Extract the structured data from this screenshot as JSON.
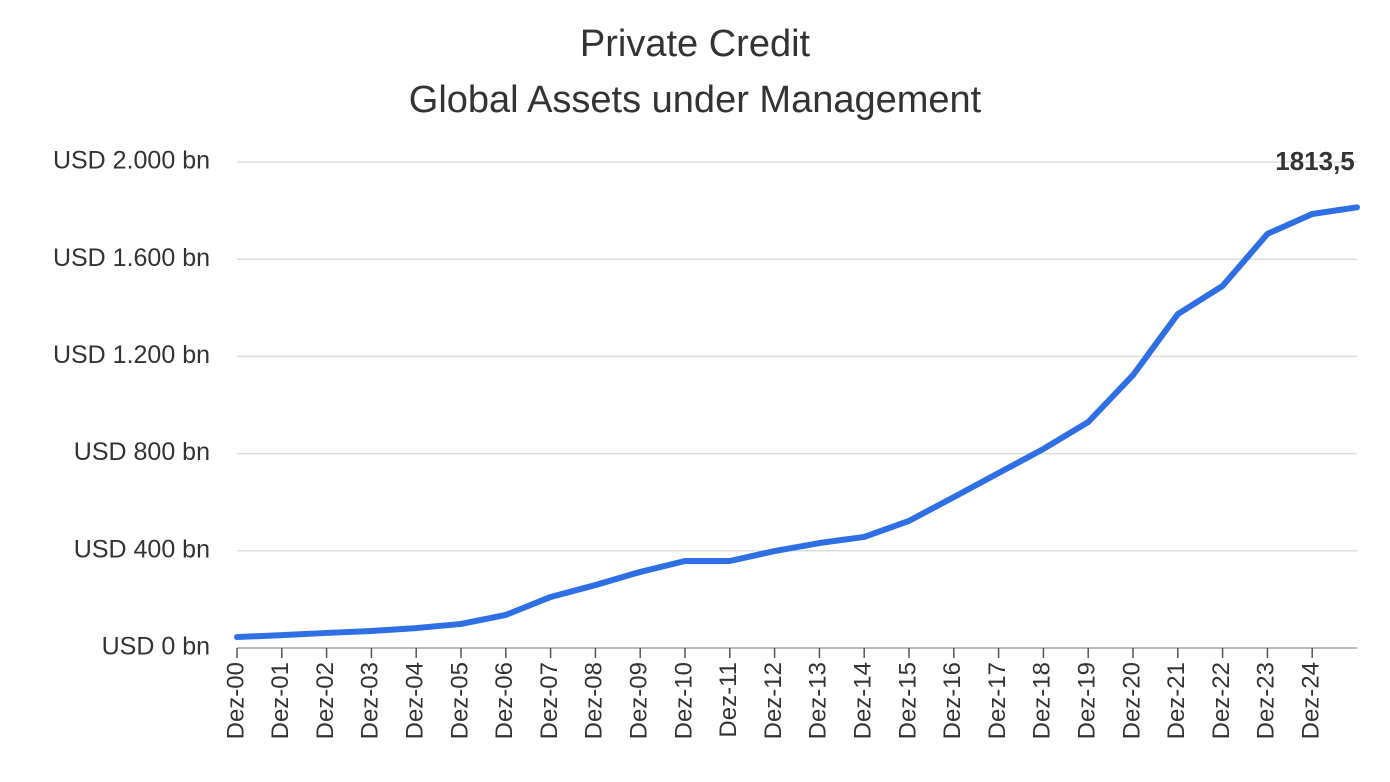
{
  "chart_data": {
    "type": "line",
    "title": "Private Credit",
    "subtitle": "Global Assets under Management",
    "categories": [
      "Dez-00",
      "Dez-01",
      "Dez-02",
      "Dez-03",
      "Dez-04",
      "Dez-05",
      "Dez-06",
      "Dez-07",
      "Dez-08",
      "Dez-09",
      "Dez-10",
      "Dez-11",
      "Dez-12",
      "Dez-13",
      "Dez-14",
      "Dez-15",
      "Dez-16",
      "Dez-17",
      "Dez-18",
      "Dez-19",
      "Dez-20",
      "Dez-21",
      "Dez-22",
      "Dez-23",
      "Dez-24",
      null
    ],
    "series": [
      {
        "name": "Global Assets under Management",
        "color": "#2f6fe6",
        "values": [
          45,
          53,
          62,
          70,
          82,
          99,
          136,
          210,
          259,
          313,
          358,
          358,
          399,
          432,
          457,
          523,
          621,
          720,
          819,
          930,
          1123,
          1374,
          1490,
          1704,
          1786,
          1813.5
        ],
        "value_labels": [
          null,
          null,
          null,
          null,
          null,
          null,
          null,
          null,
          null,
          null,
          null,
          null,
          null,
          null,
          null,
          null,
          null,
          null,
          null,
          null,
          null,
          null,
          null,
          null,
          null,
          "1813,5"
        ]
      }
    ],
    "ylim": [
      0,
      2000
    ],
    "yticks": [
      {
        "value": 0,
        "label": "USD 0 bn"
      },
      {
        "value": 400,
        "label": "USD 400 bn"
      },
      {
        "value": 800,
        "label": "USD 800 bn"
      },
      {
        "value": 1200,
        "label": "USD 1.200 bn"
      },
      {
        "value": 1600,
        "label": "USD 1.600 bn"
      },
      {
        "value": 2000,
        "label": "USD 2.000 bn"
      }
    ],
    "grid": true
  }
}
